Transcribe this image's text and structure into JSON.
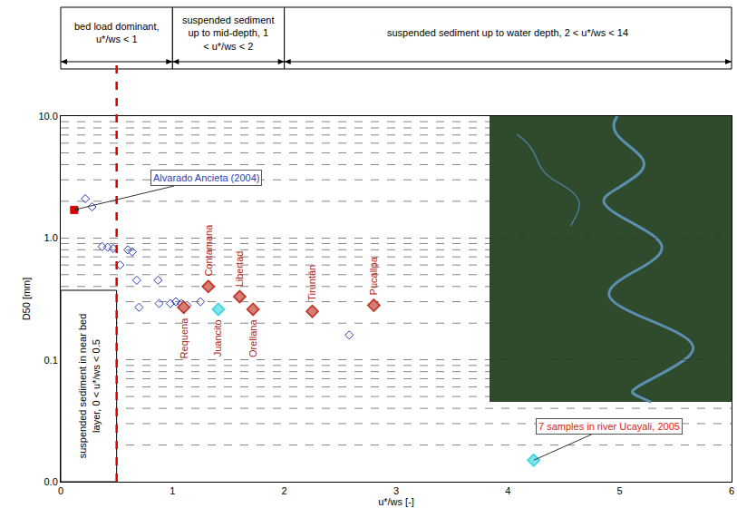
{
  "chart_data": {
    "type": "scatter",
    "xlabel": "u*/ws [-]",
    "ylabel": "D50 [mm]",
    "xlim": [
      0,
      6
    ],
    "xticks": [
      0,
      1,
      2,
      3,
      4,
      5,
      6
    ],
    "ylim": [
      0.01,
      10
    ],
    "yticks": [
      {
        "value": 0.01,
        "label": "0.0"
      },
      {
        "value": 0.1,
        "label": "0.1"
      },
      {
        "value": 1,
        "label": "1.0"
      },
      {
        "value": 10,
        "label": "10.0"
      }
    ],
    "log": "y",
    "grid": true,
    "regimes": [
      {
        "text": "bed load dominant, u*/ws < 1",
        "from": 0,
        "to": 1
      },
      {
        "text": "suspended sediment up to mid-depth, 1 < u*/ws < 2",
        "from": 1,
        "to": 2
      },
      {
        "text": "suspended sediment up to water depth, 2 < u*/ws < 14",
        "from": 2,
        "to": 6
      }
    ],
    "near_bed_regime": {
      "text": "suspended sediment in near bed layer, 0 < u*/ws < 0.5",
      "from": 0,
      "to": 0.5
    },
    "series": [
      {
        "color": "#2b3bbf",
        "marker": "diamond-open",
        "x": [
          0.22,
          0.28,
          0.37,
          0.42,
          0.47,
          0.53,
          0.6,
          0.64,
          0.68,
          0.7,
          0.87,
          0.88,
          0.98,
          1.03,
          1.08,
          1.13,
          1.25,
          2.58
        ],
        "values": [
          2.1,
          1.8,
          0.85,
          0.84,
          0.82,
          0.6,
          0.8,
          0.77,
          0.45,
          0.27,
          0.45,
          0.29,
          0.29,
          0.3,
          0.29,
          0.28,
          0.3,
          0.16
        ]
      },
      {
        "color": "#e00000",
        "marker": "square",
        "x": [
          0.12
        ],
        "values": [
          1.7
        ],
        "annotation": "Alvarado Ancieta (2004)"
      },
      {
        "color": "#c0392b",
        "marker": "diamond",
        "x": [
          1.1,
          1.32,
          1.6,
          1.72,
          2.25,
          2.8
        ],
        "values": [
          0.27,
          0.4,
          0.33,
          0.26,
          0.25,
          0.28
        ],
        "labels": [
          "Requena",
          "Contamana",
          "Libertad",
          "Orellana",
          "Tiruntán",
          "Pucallpa"
        ]
      },
      {
        "color": "#3fd6e0",
        "marker": "diamond",
        "x": [
          1.41
        ],
        "values": [
          0.26
        ],
        "labels": [
          "Juancito"
        ]
      },
      {
        "color": "#3fd6e0",
        "marker": "diamond",
        "x": [
          4.23
        ],
        "values": [
          0.015
        ],
        "annotation": "7 samples in river Ucayali, 2005"
      }
    ]
  }
}
